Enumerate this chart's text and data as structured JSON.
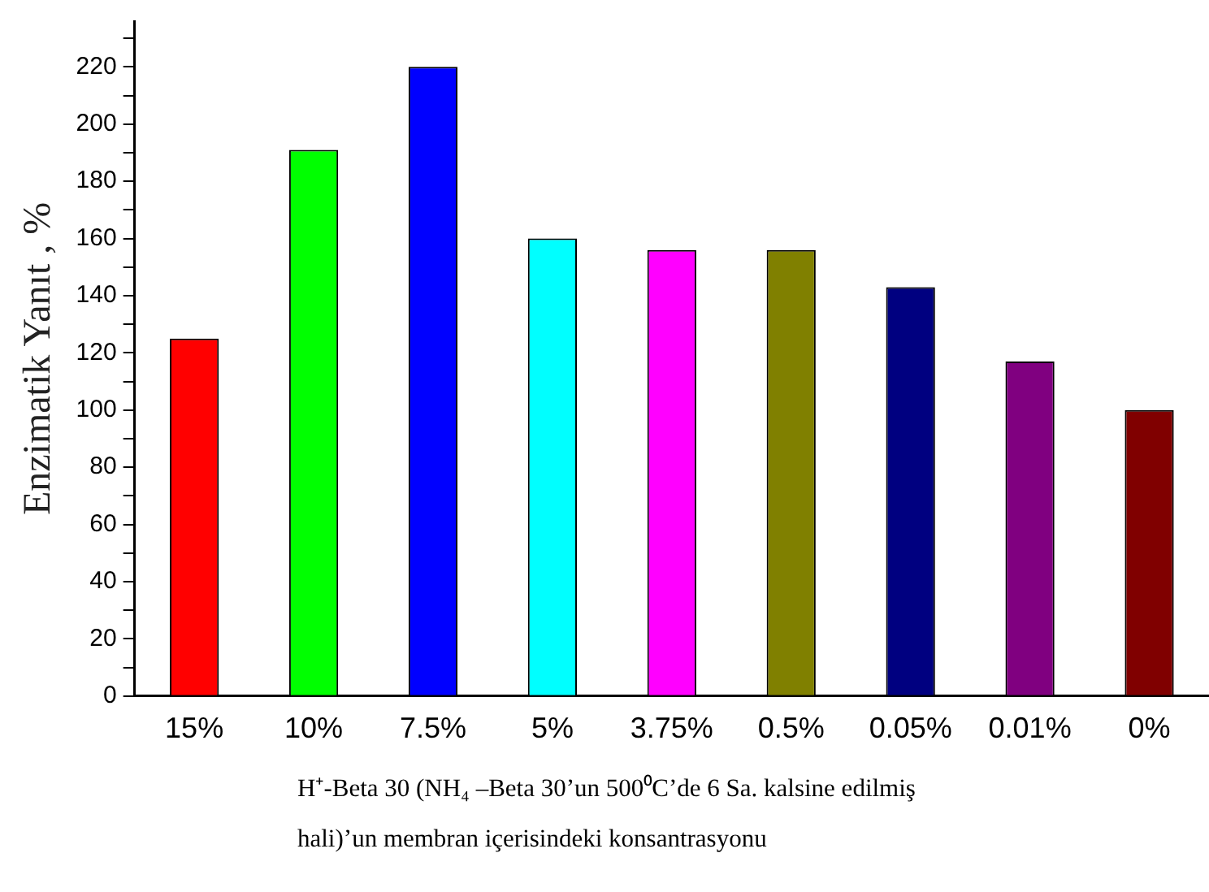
{
  "chart_data": {
    "type": "bar",
    "ylabel": "Enzimatik Yanıt , %",
    "xlabel": "H⁺-Beta 30 (NH₄ –Beta 30’un 500⁰C’de 6 Sa. kalsine edilmiş hali)’un membran içerisindeki konsantrasyonu",
    "categories": [
      "15%",
      "10%",
      "7.5%",
      "5%",
      "3.75%",
      "0.5%",
      "0.05%",
      "0.01%",
      "0%"
    ],
    "values": [
      125,
      191,
      220,
      160,
      156,
      156,
      143,
      117,
      100
    ],
    "colors": [
      "#ff0000",
      "#00ff00",
      "#0000ff",
      "#00ffff",
      "#ff00ff",
      "#808000",
      "#000080",
      "#800080",
      "#800000"
    ],
    "ylim": [
      0,
      236
    ],
    "yticks": [
      0,
      {
        "value": 10,
        "label": null
      },
      20,
      {
        "value": 30,
        "label": null
      },
      40,
      {
        "value": 50,
        "label": null
      },
      60,
      {
        "value": 70,
        "label": null
      },
      80,
      {
        "value": 90,
        "label": null
      },
      100,
      {
        "value": 110,
        "label": null
      },
      120,
      {
        "value": 130,
        "label": null
      },
      140,
      {
        "value": 150,
        "label": null
      },
      160,
      {
        "value": 170,
        "label": null
      },
      180,
      {
        "value": 190,
        "label": null
      },
      200,
      {
        "value": 210,
        "label": null
      },
      220,
      {
        "value": 230,
        "label": null
      }
    ],
    "grid": false,
    "legend": false
  }
}
